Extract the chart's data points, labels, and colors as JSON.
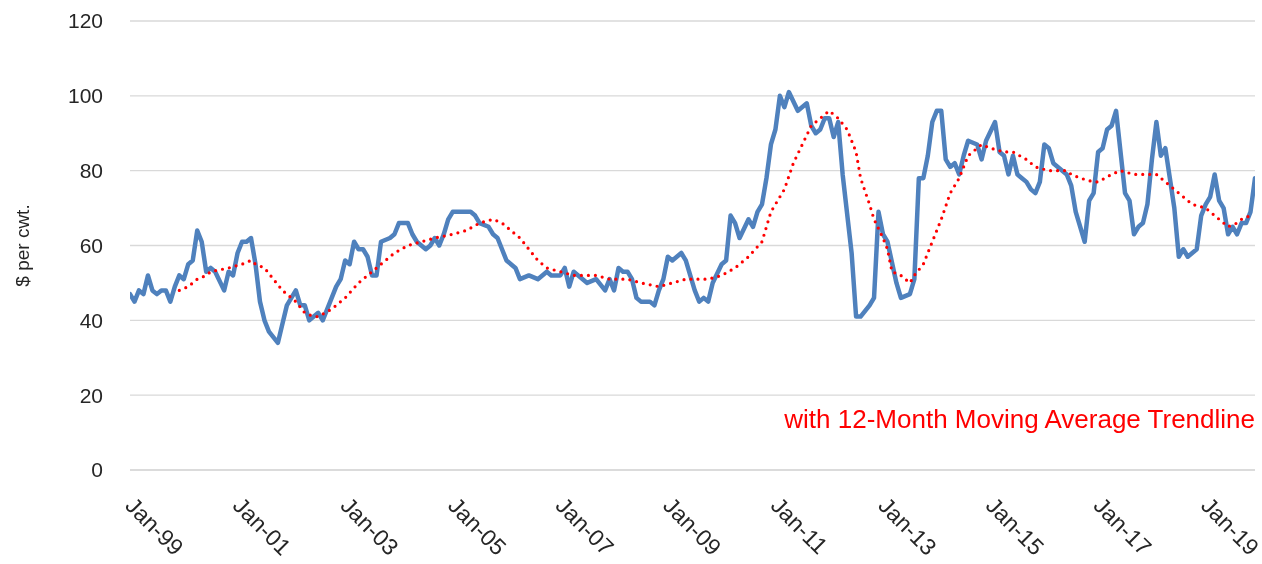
{
  "chart_data": {
    "type": "line",
    "ylabel": "$ per cwt.",
    "annotations": [
      "with 12-Month Moving Average Trendline"
    ],
    "xlim": [
      "1999-01",
      "2019-12"
    ],
    "xticks": [
      {
        "value": "1999-01",
        "label": "Jan-99"
      },
      {
        "value": "2001-01",
        "label": "Jan-01"
      },
      {
        "value": "2003-01",
        "label": "Jan-03"
      },
      {
        "value": "2005-01",
        "label": "Jan-05"
      },
      {
        "value": "2007-01",
        "label": "Jan-07"
      },
      {
        "value": "2009-01",
        "label": "Jan-09"
      },
      {
        "value": "2011-01",
        "label": "Jan-11"
      },
      {
        "value": "2013-01",
        "label": "Jan-13"
      },
      {
        "value": "2015-01",
        "label": "Jan-15"
      },
      {
        "value": "2017-01",
        "label": "Jan-17"
      },
      {
        "value": "2019-01",
        "label": "Jan-19"
      }
    ],
    "ylim": [
      0,
      120
    ],
    "yticks": [
      0,
      20,
      40,
      60,
      80,
      100,
      120
    ],
    "grid": "y",
    "series": [
      {
        "color": "#4f81bd",
        "line_style": "solid",
        "x": [
          "1999-01",
          "1999-02",
          "1999-03",
          "1999-04",
          "1999-05",
          "1999-06",
          "1999-07",
          "1999-08",
          "1999-09",
          "1999-10",
          "1999-11",
          "1999-12",
          "2000-01",
          "2000-02",
          "2000-03",
          "2000-04",
          "2000-05",
          "2000-06",
          "2000-07",
          "2000-08",
          "2000-10",
          "2000-11",
          "2000-12",
          "2001-01",
          "2001-02",
          "2001-03",
          "2001-04",
          "2001-05",
          "2001-06",
          "2001-07",
          "2001-08",
          "2001-10",
          "2001-11",
          "2001-12",
          "2002-02",
          "2002-03",
          "2002-04",
          "2002-05",
          "2002-07",
          "2002-08",
          "2002-10",
          "2002-11",
          "2002-12",
          "2003-01",
          "2003-02",
          "2003-03",
          "2003-04",
          "2003-05",
          "2003-06",
          "2003-07",
          "2003-08",
          "2003-09",
          "2003-11",
          "2003-12",
          "2004-01",
          "2004-03",
          "2004-04",
          "2004-05",
          "2004-07",
          "2004-08",
          "2004-09",
          "2004-10",
          "2004-11",
          "2004-12",
          "2005-01",
          "2005-03",
          "2005-04",
          "2005-05",
          "2005-06",
          "2005-07",
          "2005-09",
          "2005-10",
          "2005-11",
          "2005-12",
          "2006-01",
          "2006-03",
          "2006-04",
          "2006-06",
          "2006-08",
          "2006-10",
          "2006-11",
          "2007-01",
          "2007-02",
          "2007-03",
          "2007-04",
          "2007-05",
          "2007-07",
          "2007-09",
          "2007-11",
          "2007-12",
          "2008-01",
          "2008-02",
          "2008-03",
          "2008-04",
          "2008-05",
          "2008-06",
          "2008-07",
          "2008-09",
          "2008-10",
          "2008-11",
          "2008-12",
          "2009-01",
          "2009-02",
          "2009-04",
          "2009-05",
          "2009-06",
          "2009-07",
          "2009-08",
          "2009-09",
          "2009-10",
          "2009-11",
          "2010-01",
          "2010-02",
          "2010-03",
          "2010-04",
          "2010-05",
          "2010-07",
          "2010-08",
          "2010-09",
          "2010-10",
          "2010-11",
          "2010-12",
          "2011-01",
          "2011-02",
          "2011-03",
          "2011-04",
          "2011-06",
          "2011-08",
          "2011-09",
          "2011-10",
          "2011-11",
          "2011-12",
          "2012-01",
          "2012-02",
          "2012-03",
          "2012-04",
          "2012-06",
          "2012-07",
          "2012-08",
          "2012-10",
          "2012-11",
          "2012-12",
          "2013-01",
          "2013-02",
          "2013-04",
          "2013-05",
          "2013-07",
          "2013-08",
          "2013-09",
          "2013-10",
          "2013-11",
          "2013-12",
          "2014-01",
          "2014-02",
          "2014-03",
          "2014-04",
          "2014-05",
          "2014-06",
          "2014-07",
          "2014-08",
          "2014-10",
          "2014-11",
          "2014-12",
          "2015-02",
          "2015-03",
          "2015-04",
          "2015-05",
          "2015-06",
          "2015-07",
          "2015-08",
          "2015-09",
          "2015-10",
          "2015-11",
          "2015-12",
          "2016-01",
          "2016-02",
          "2016-03",
          "2016-04",
          "2016-05",
          "2016-06",
          "2016-07",
          "2016-08",
          "2016-10",
          "2016-11",
          "2016-12",
          "2017-01",
          "2017-02",
          "2017-03",
          "2017-04",
          "2017-05",
          "2017-06",
          "2017-07",
          "2017-08",
          "2017-09",
          "2017-10",
          "2017-11",
          "2017-12",
          "2018-01",
          "2018-02",
          "2018-03",
          "2018-04",
          "2018-05",
          "2018-06",
          "2018-07",
          "2018-08",
          "2018-09",
          "2018-11",
          "2018-12",
          "2019-01",
          "2019-02",
          "2019-03",
          "2019-04",
          "2019-05",
          "2019-06",
          "2019-07",
          "2019-08",
          "2019-09",
          "2019-10",
          "2019-11",
          "2019-12"
        ],
        "values": [
          47,
          45,
          48,
          47,
          52,
          48,
          47,
          48,
          48,
          45,
          49,
          52,
          51,
          55,
          56,
          64,
          61,
          53,
          54,
          53,
          48,
          53,
          52,
          58,
          61,
          61,
          62,
          55,
          45,
          40,
          37,
          34,
          39,
          44,
          48,
          44,
          44,
          40,
          42,
          40,
          46,
          49,
          51,
          56,
          55,
          61,
          59,
          59,
          57,
          52,
          52,
          61,
          62,
          63,
          66,
          66,
          63,
          61,
          59,
          60,
          62,
          60,
          63,
          67,
          69,
          69,
          69,
          69,
          68,
          66,
          65,
          63,
          62,
          59,
          56,
          54,
          51,
          52,
          51,
          53,
          52,
          52,
          54,
          49,
          53,
          52,
          50,
          51,
          48,
          51,
          48,
          54,
          53,
          53,
          51,
          46,
          45,
          45,
          44,
          48,
          51,
          57,
          56,
          58,
          56,
          52,
          48,
          45,
          46,
          45,
          50,
          55,
          56,
          68,
          66,
          62,
          67,
          65,
          69,
          71,
          78,
          87,
          91,
          100,
          97,
          101,
          96,
          98,
          92,
          90,
          91,
          94,
          94,
          89,
          93,
          79,
          58,
          41,
          41,
          44,
          46,
          69,
          63,
          61,
          50,
          46,
          47,
          51,
          78,
          78,
          84,
          93,
          96,
          96,
          83,
          81,
          82,
          79,
          84,
          88,
          87,
          83,
          88,
          93,
          85,
          84,
          79,
          84,
          79,
          78,
          77,
          75,
          74,
          77,
          87,
          86,
          82,
          81,
          80,
          79,
          76,
          69,
          61,
          72,
          74,
          85,
          86,
          91,
          92,
          96,
          85,
          74,
          72,
          63,
          65,
          66,
          71,
          83,
          93,
          84,
          86,
          78,
          70,
          57,
          59,
          57,
          59,
          68,
          71,
          73,
          79,
          72,
          70,
          63,
          65,
          63,
          66,
          66,
          69,
          78
        ]
      },
      {
        "type": "line",
        "color": "#ff0000",
        "line_style": "dotted",
        "x": [
          "1999-12",
          "2000-02",
          "2000-04",
          "2000-06",
          "2000-07",
          "2000-11",
          "2001-02",
          "2001-04",
          "2001-05",
          "2001-07",
          "2001-09",
          "2001-11",
          "2002-02",
          "2002-04",
          "2002-06",
          "2002-07",
          "2002-10",
          "2003-01",
          "2003-04",
          "2003-07",
          "2003-10",
          "2003-12",
          "2004-03",
          "2004-06",
          "2004-09",
          "2005-01",
          "2005-04",
          "2005-07",
          "2005-10",
          "2005-12",
          "2006-01",
          "2006-04",
          "2006-06",
          "2006-08",
          "2006-10",
          "2007-01",
          "2007-04",
          "2007-09",
          "2007-12",
          "2008-04",
          "2008-07",
          "2008-11",
          "2009-02",
          "2009-05",
          "2009-08",
          "2009-10",
          "2010-01",
          "2010-04",
          "2010-07",
          "2010-10",
          "2010-12",
          "2011-03",
          "2011-05",
          "2011-07",
          "2011-09",
          "2011-11",
          "2012-01",
          "2012-03",
          "2012-05",
          "2012-07",
          "2012-08",
          "2012-10",
          "2012-11",
          "2013-01",
          "2013-02",
          "2013-03",
          "2013-05",
          "2013-07",
          "2013-08",
          "2013-10",
          "2013-12",
          "2014-02",
          "2014-04",
          "2014-06",
          "2014-08",
          "2014-10",
          "2014-11",
          "2015-01",
          "2015-04",
          "2015-06",
          "2015-09",
          "2015-11",
          "2016-02",
          "2016-06",
          "2016-07",
          "2016-09",
          "2016-12",
          "2017-01",
          "2017-04",
          "2017-06",
          "2017-09",
          "2017-12",
          "2018-02",
          "2018-03",
          "2018-05",
          "2018-08",
          "2018-10",
          "2019-01",
          "2019-03",
          "2019-06",
          "2019-08",
          "2019-09",
          "2019-11"
        ],
        "values": [
          48,
          49,
          51,
          52,
          53,
          54,
          55,
          56,
          55,
          54,
          51,
          48,
          45,
          42,
          41,
          41,
          43,
          46,
          50,
          53,
          56,
          58,
          60,
          61,
          62,
          63,
          64,
          66,
          67,
          66,
          65,
          62,
          59,
          56,
          54,
          53,
          52,
          52,
          51,
          51,
          50,
          49,
          50,
          51,
          51,
          51,
          52,
          54,
          57,
          61,
          69,
          75,
          82,
          87,
          92,
          94,
          96,
          94,
          91,
          85,
          78,
          71,
          67,
          62,
          59,
          53,
          52,
          50,
          52,
          55,
          61,
          67,
          74,
          78,
          84,
          86,
          87,
          86,
          85,
          85,
          83,
          81,
          80,
          80,
          79,
          78,
          77,
          77,
          79,
          80,
          79,
          79,
          79,
          78,
          76,
          73,
          71,
          70,
          68,
          65,
          66,
          67,
          68
        ]
      }
    ]
  }
}
